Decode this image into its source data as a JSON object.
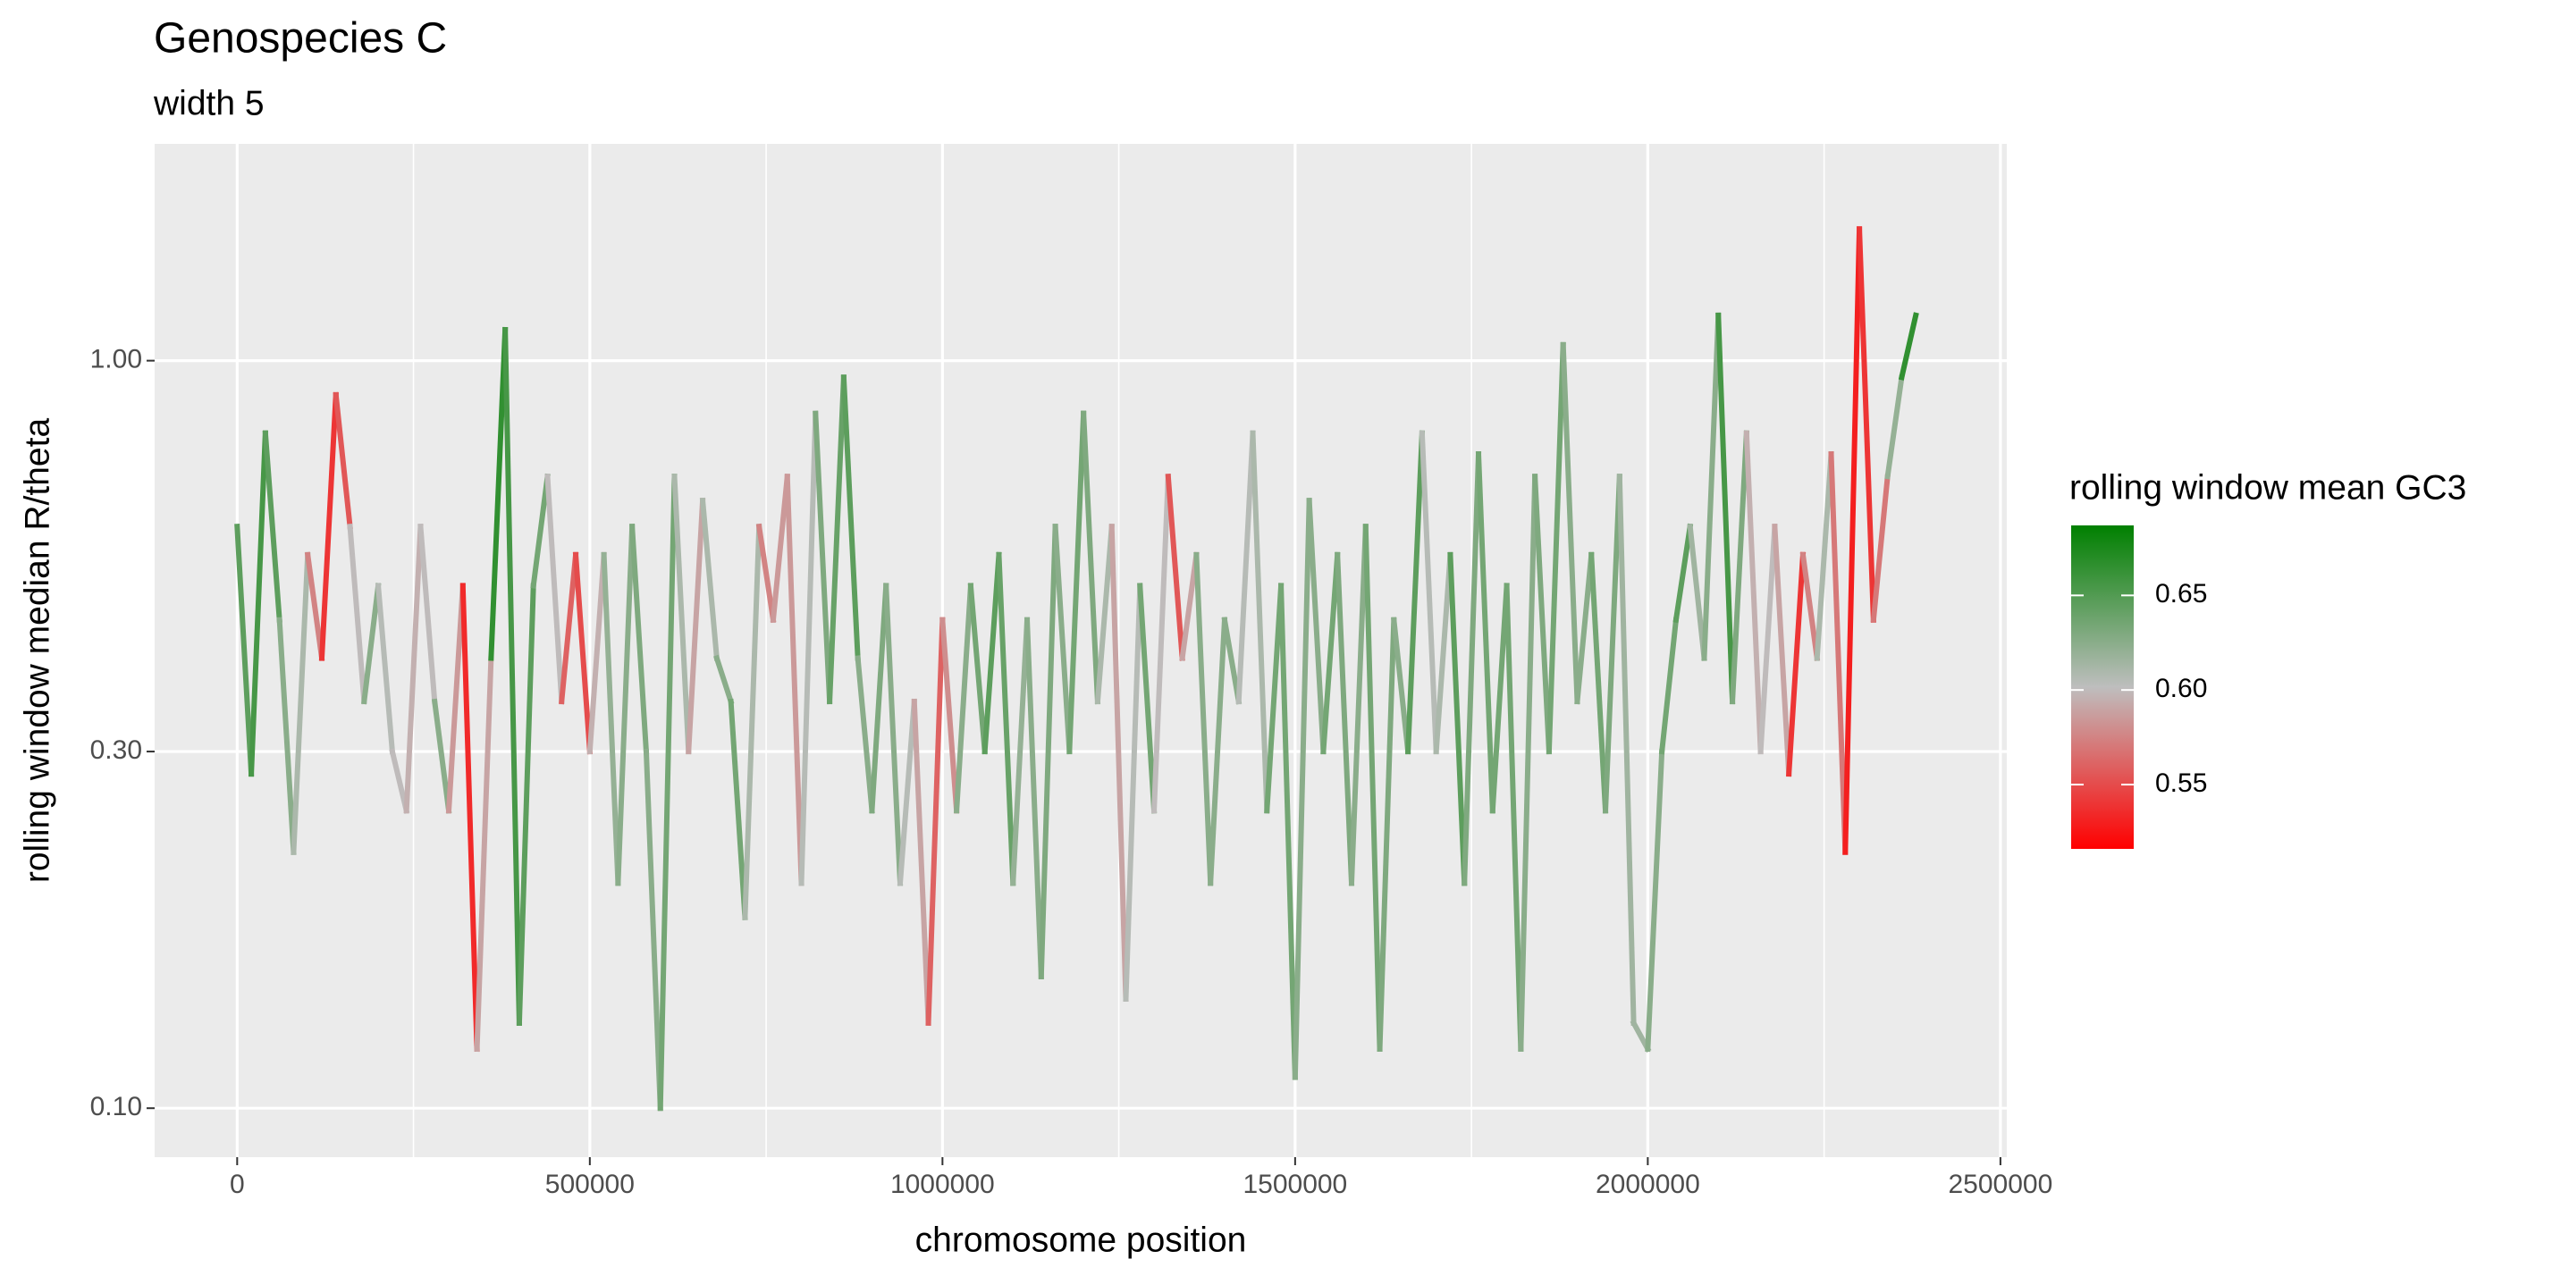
{
  "chart_data": {
    "type": "line",
    "title": "Genospecies C",
    "subtitle": "width 5",
    "x_label": "chromosome position",
    "y_label": "rolling window median R/theta",
    "log_y": true,
    "grid": true,
    "xlim": [
      -117000,
      2509000
    ],
    "ylim": [
      0.086,
      1.95
    ],
    "xticks": [
      0,
      500000,
      1000000,
      1500000,
      2000000,
      2500000
    ],
    "xminor_ticks": [
      250000,
      750000,
      1250000,
      1750000,
      2250000
    ],
    "yticks": [
      {
        "value": 0.1,
        "label": "0.10"
      },
      {
        "value": 0.3,
        "label": "0.30"
      },
      {
        "value": 1,
        "label": "1.00"
      }
    ],
    "x": [
      0,
      20000,
      40000,
      60000,
      80000,
      100000,
      120000,
      140000,
      160000,
      180000,
      200000,
      220000,
      240000,
      260000,
      280000,
      300000,
      320000,
      340000,
      360000,
      380000,
      400000,
      420000,
      440000,
      460000,
      480000,
      500000,
      520000,
      540000,
      560000,
      580000,
      600000,
      620000,
      640000,
      660000,
      680000,
      700000,
      720000,
      740000,
      760000,
      780000,
      800000,
      820000,
      840000,
      860000,
      880000,
      900000,
      920000,
      940000,
      960000,
      980000,
      1000000,
      1020000,
      1040000,
      1060000,
      1080000,
      1100000,
      1120000,
      1140000,
      1160000,
      1180000,
      1200000,
      1220000,
      1240000,
      1260000,
      1280000,
      1300000,
      1320000,
      1340000,
      1360000,
      1380000,
      1400000,
      1420000,
      1440000,
      1460000,
      1480000,
      1500000,
      1520000,
      1540000,
      1560000,
      1580000,
      1600000,
      1620000,
      1640000,
      1660000,
      1680000,
      1700000,
      1720000,
      1740000,
      1760000,
      1780000,
      1800000,
      1820000,
      1840000,
      1860000,
      1880000,
      1900000,
      1920000,
      1940000,
      1960000,
      1980000,
      2000000,
      2020000,
      2040000,
      2060000,
      2080000,
      2100000,
      2120000,
      2140000,
      2160000,
      2180000,
      2200000,
      2220000,
      2240000,
      2260000,
      2280000,
      2300000,
      2320000,
      2340000,
      2360000,
      2380000
    ],
    "values": [
      0.6,
      0.28,
      0.8,
      0.45,
      0.22,
      0.55,
      0.4,
      0.9,
      0.6,
      0.35,
      0.5,
      0.3,
      0.25,
      0.6,
      0.35,
      0.25,
      0.5,
      0.12,
      0.4,
      1.1,
      0.13,
      0.5,
      0.7,
      0.35,
      0.55,
      0.3,
      0.55,
      0.2,
      0.6,
      0.3,
      0.1,
      0.7,
      0.3,
      0.65,
      0.4,
      0.35,
      0.18,
      0.6,
      0.45,
      0.7,
      0.2,
      0.85,
      0.35,
      0.95,
      0.4,
      0.25,
      0.5,
      0.2,
      0.35,
      0.13,
      0.45,
      0.25,
      0.5,
      0.3,
      0.55,
      0.2,
      0.45,
      0.15,
      0.6,
      0.3,
      0.85,
      0.35,
      0.6,
      0.14,
      0.5,
      0.25,
      0.7,
      0.4,
      0.55,
      0.2,
      0.45,
      0.35,
      0.8,
      0.25,
      0.5,
      0.11,
      0.65,
      0.3,
      0.55,
      0.2,
      0.6,
      0.12,
      0.45,
      0.3,
      0.8,
      0.3,
      0.55,
      0.2,
      0.75,
      0.25,
      0.5,
      0.12,
      0.7,
      0.3,
      1.05,
      0.35,
      0.55,
      0.25,
      0.7,
      0.13,
      0.12,
      0.3,
      0.45,
      0.6,
      0.4,
      1.15,
      0.35,
      0.8,
      0.3,
      0.6,
      0.28,
      0.55,
      0.4,
      0.75,
      0.22,
      1.5,
      0.45,
      0.7,
      0.95,
      1.15
    ],
    "gc3": [
      0.64,
      0.65,
      0.66,
      0.63,
      0.62,
      0.6,
      0.55,
      0.53,
      0.58,
      0.62,
      0.63,
      0.58,
      0.62,
      0.57,
      0.63,
      0.62,
      0.55,
      0.52,
      0.66,
      0.67,
      0.64,
      0.65,
      0.62,
      0.58,
      0.54,
      0.56,
      0.63,
      0.61,
      0.64,
      0.62,
      0.63,
      0.64,
      0.58,
      0.6,
      0.62,
      0.63,
      0.64,
      0.58,
      0.57,
      0.6,
      0.57,
      0.64,
      0.62,
      0.66,
      0.63,
      0.62,
      0.64,
      0.61,
      0.6,
      0.58,
      0.54,
      0.62,
      0.63,
      0.64,
      0.65,
      0.63,
      0.61,
      0.64,
      0.62,
      0.63,
      0.64,
      0.62,
      0.6,
      0.58,
      0.63,
      0.64,
      0.56,
      0.55,
      0.63,
      0.62,
      0.63,
      0.62,
      0.59,
      0.63,
      0.64,
      0.63,
      0.62,
      0.63,
      0.64,
      0.62,
      0.63,
      0.64,
      0.62,
      0.63,
      0.66,
      0.55,
      0.67,
      0.62,
      0.64,
      0.63,
      0.64,
      0.63,
      0.62,
      0.64,
      0.63,
      0.62,
      0.63,
      0.64,
      0.62,
      0.61,
      0.62,
      0.63,
      0.64,
      0.65,
      0.58,
      0.67,
      0.64,
      0.62,
      0.57,
      0.63,
      0.55,
      0.53,
      0.62,
      0.6,
      0.54,
      0.52,
      0.56,
      0.58,
      0.66,
      0.67
    ],
    "colorbar": {
      "title": "rolling window mean GC3",
      "limits": [
        0.516,
        0.687
      ],
      "colors": [
        "#ff0000",
        "#bebebe",
        "#008000"
      ],
      "ticks": [
        0.55,
        {
          "value": 0.6,
          "label": "0.60"
        },
        0.65
      ]
    }
  }
}
